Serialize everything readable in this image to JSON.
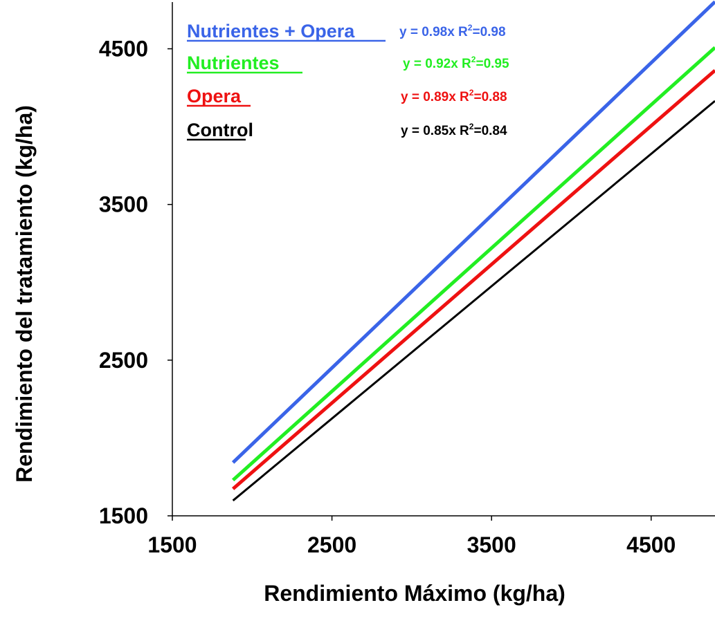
{
  "chart_data": {
    "type": "line",
    "title": "",
    "xlabel": "Rendimiento Máximo (kg/ha)",
    "ylabel": "Rendimiento del tratamiento (kg/ha)",
    "xlim": [
      1500,
      4900
    ],
    "ylim": [
      1500,
      4800
    ],
    "x_ticks": [
      "1500",
      "2500",
      "3500",
      "4500"
    ],
    "y_ticks": [
      "1500",
      "2500",
      "3500",
      "4500"
    ],
    "grid": false,
    "legend_position": "top-left",
    "x_range": [
      1880,
      4900
    ],
    "series": [
      {
        "name": "Nutrientes + Opera",
        "equation": "y = 0.98x",
        "r2_prefix": "R",
        "r2_sup": "2",
        "r2_value": "=0.98",
        "slope": 0.98,
        "color": "#3a64e8"
      },
      {
        "name": "Nutrientes",
        "equation": "y = 0.92x",
        "r2_prefix": "R",
        "r2_sup": "2",
        "r2_value": "=0.95",
        "slope": 0.92,
        "color": "#22ee22"
      },
      {
        "name": "Opera",
        "equation": "y = 0.89x",
        "r2_prefix": "R",
        "r2_sup": "2",
        "r2_value": "=0.88",
        "slope": 0.89,
        "color": "#ee1111"
      },
      {
        "name": "Control",
        "equation": "y = 0.85x",
        "r2_prefix": "R",
        "r2_sup": "2",
        "r2_value": "=0.84",
        "slope": 0.85,
        "color": "#000000"
      }
    ]
  }
}
